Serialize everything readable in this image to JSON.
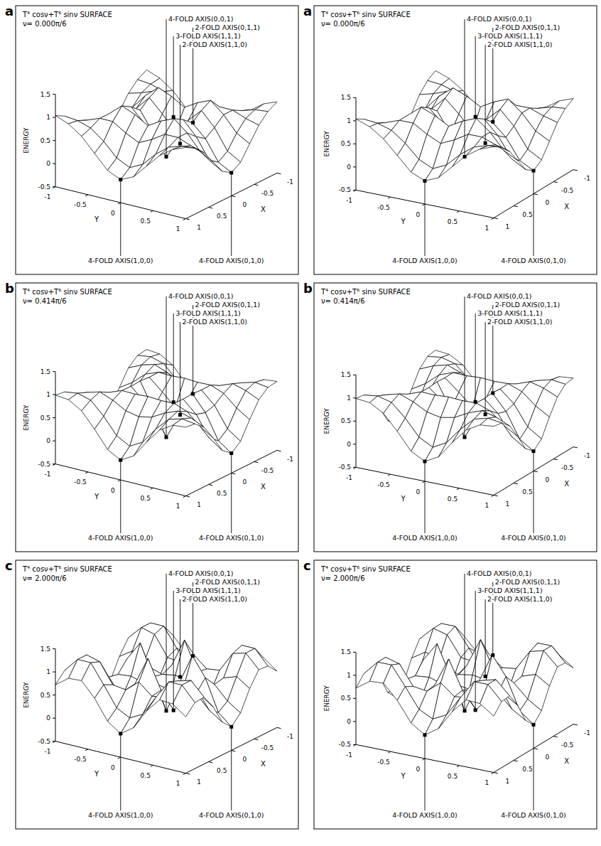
{
  "chart_data": [
    {
      "type": "surface",
      "panel_label": "a",
      "title": "T⁴ cosν+T⁶ sinν SURFACE",
      "subtitle": "ν= 0.000π/6",
      "x_label": "X",
      "y_label": "Y",
      "z_label": "ENERGY",
      "x": [
        -1,
        -0.8,
        -0.6,
        -0.4,
        -0.2,
        0,
        0.2,
        0.4,
        0.6,
        0.8,
        1
      ],
      "y": [
        -1,
        -0.8,
        -0.6,
        -0.4,
        -0.2,
        0,
        0.2,
        0.4,
        0.6,
        0.8,
        1
      ],
      "z": [
        [
          1.04,
          0.93,
          0.73,
          0.43,
          0.13,
          0,
          0.13,
          0.43,
          0.73,
          0.93,
          1.04
        ],
        [
          0.93,
          0.9,
          0.81,
          0.59,
          0.3,
          0.16,
          0.3,
          0.59,
          0.81,
          0.9,
          0.93
        ],
        [
          0.73,
          0.81,
          0.92,
          0.92,
          0.74,
          0.6,
          0.74,
          0.92,
          0.92,
          0.81,
          0.73
        ],
        [
          0.43,
          0.59,
          0.92,
          1.16,
          1.04,
          0.87,
          1.04,
          1.16,
          0.92,
          0.59,
          0.43
        ],
        [
          0.13,
          0.3,
          0.74,
          1.04,
          0.76,
          0.44,
          0.76,
          1.04,
          0.74,
          0.3,
          0.13
        ],
        [
          0,
          0.16,
          0.6,
          0.87,
          0.44,
          0,
          0.44,
          0.87,
          0.6,
          0.16,
          0
        ],
        [
          0.13,
          0.3,
          0.74,
          1.04,
          0.76,
          0.44,
          0.76,
          1.04,
          0.74,
          0.3,
          0.13
        ],
        [
          0.43,
          0.59,
          0.92,
          1.16,
          1.04,
          0.87,
          1.04,
          1.16,
          0.92,
          0.59,
          0.43
        ],
        [
          0.73,
          0.81,
          0.92,
          0.92,
          0.74,
          0.6,
          0.74,
          0.92,
          0.92,
          0.81,
          0.73
        ],
        [
          0.93,
          0.9,
          0.81,
          0.59,
          0.3,
          0.16,
          0.3,
          0.59,
          0.81,
          0.9,
          0.93
        ],
        [
          1.04,
          0.93,
          0.73,
          0.43,
          0.13,
          0,
          0.13,
          0.43,
          0.73,
          0.93,
          1.04
        ]
      ],
      "xlim": [
        -1,
        1
      ],
      "xticks": [
        -1,
        -0.5,
        0,
        0.5,
        1
      ],
      "ylim": [
        -1,
        1
      ],
      "yticks": [
        -1,
        -0.5,
        0,
        0.5,
        1
      ],
      "zlim": [
        -0.5,
        1.5
      ],
      "zticks": [
        -0.5,
        0,
        0.5,
        1,
        1.5
      ],
      "annotations": [
        {
          "text": "4-FOLD AXIS(0,0,1)",
          "x": 0,
          "y": 0,
          "z": 0
        },
        {
          "text": "2-FOLD AXIS(0,1,1)",
          "x": 0,
          "y": 0.41,
          "z": 0.88
        },
        {
          "text": "3-FOLD AXIS(1,1,1)",
          "x": 0.37,
          "y": 0.37,
          "z": 1.17
        },
        {
          "text": "2-FOLD AXIS(1,1,0)",
          "x": 0.71,
          "y": 0.71,
          "z": 0.88
        },
        {
          "text": "4-FOLD AXIS(1,0,0)",
          "x": 1,
          "y": 0,
          "z": 0
        },
        {
          "text": "4-FOLD AXIS(0,1,0)",
          "x": 0,
          "y": 1,
          "z": 0
        }
      ]
    },
    {
      "type": "surface",
      "panel_label": "b",
      "title": "T⁴ cosν+T⁶ sinν SURFACE",
      "subtitle": "ν= 0.414π/6",
      "x_label": "X",
      "y_label": "Y",
      "z_label": "ENERGY",
      "x": [
        -1,
        -0.8,
        -0.6,
        -0.4,
        -0.2,
        0,
        0.2,
        0.4,
        0.6,
        0.8,
        1
      ],
      "y": [
        -1,
        -0.8,
        -0.6,
        -0.4,
        -0.2,
        0,
        0.2,
        0.4,
        0.6,
        0.8,
        1
      ],
      "z": [
        [
          0.99,
          0.96,
          0.79,
          0.46,
          0.09,
          -0.07,
          0.09,
          0.46,
          0.79,
          0.96,
          0.99
        ],
        [
          0.96,
          1,
          0.92,
          0.64,
          0.29,
          0.13,
          0.29,
          0.64,
          0.92,
          1,
          0.96
        ],
        [
          0.79,
          0.92,
          1,
          0.89,
          0.73,
          0.67,
          0.73,
          0.89,
          1,
          0.92,
          0.79
        ],
        [
          0.46,
          0.64,
          0.89,
          1,
          0.99,
          1.01,
          0.99,
          1,
          0.89,
          0.64,
          0.46
        ],
        [
          0.09,
          0.29,
          0.73,
          0.99,
          0.74,
          0.47,
          0.74,
          0.99,
          0.73,
          0.29,
          0.09
        ],
        [
          -0.07,
          0.13,
          0.67,
          1.01,
          0.47,
          -0.07,
          0.47,
          1.01,
          0.67,
          0.13,
          -0.07
        ],
        [
          0.09,
          0.29,
          0.73,
          0.99,
          0.74,
          0.47,
          0.74,
          0.99,
          0.73,
          0.29,
          0.09
        ],
        [
          0.46,
          0.64,
          0.89,
          1,
          0.99,
          1.01,
          0.99,
          1,
          0.89,
          0.64,
          0.46
        ],
        [
          0.79,
          0.92,
          1,
          0.89,
          0.73,
          0.67,
          0.73,
          0.89,
          1,
          0.92,
          0.79
        ],
        [
          0.96,
          1,
          0.92,
          0.64,
          0.29,
          0.13,
          0.29,
          0.64,
          0.92,
          1,
          0.96
        ],
        [
          0.99,
          0.96,
          0.79,
          0.46,
          0.09,
          -0.07,
          0.09,
          0.46,
          0.79,
          0.96,
          0.99
        ]
      ],
      "xlim": [
        -1,
        1
      ],
      "xticks": [
        -1,
        -0.5,
        0,
        0.5,
        1
      ],
      "ylim": [
        -1,
        1
      ],
      "yticks": [
        -1,
        -0.5,
        0,
        0.5,
        1
      ],
      "zlim": [
        -0.5,
        1.5
      ],
      "zticks": [
        -0.5,
        0,
        0.5,
        1,
        1.5
      ],
      "annotations": [
        {
          "text": "4-FOLD AXIS(0,0,1)",
          "x": 0,
          "y": 0,
          "z": -0.07
        },
        {
          "text": "2-FOLD AXIS(0,1,1)",
          "x": 0,
          "y": 0.41,
          "z": 1.01
        },
        {
          "text": "3-FOLD AXIS(1,1,1)",
          "x": 0.37,
          "y": 0.37,
          "z": 1
        },
        {
          "text": "2-FOLD AXIS(1,1,0)",
          "x": 0.71,
          "y": 0.71,
          "z": 1.01
        },
        {
          "text": "4-FOLD AXIS(1,0,0)",
          "x": 1,
          "y": 0,
          "z": -0.07
        },
        {
          "text": "4-FOLD AXIS(0,1,0)",
          "x": 0,
          "y": 1,
          "z": -0.07
        }
      ]
    },
    {
      "type": "surface",
      "panel_label": "c",
      "title": "T⁴ cosν+T⁶ sinν SURFACE",
      "subtitle": "ν= 2.000π/6",
      "x_label": "X",
      "y_label": "Y",
      "z_label": "ENERGY",
      "x": [
        -1,
        -0.8,
        -0.6,
        -0.4,
        -0.2,
        0,
        0.2,
        0.4,
        0.6,
        0.8,
        1
      ],
      "y": [
        -1,
        -0.8,
        -0.6,
        -0.4,
        -0.2,
        0,
        0.2,
        0.4,
        0.6,
        0.8,
        1
      ],
      "z": [
        [
          0.72,
          0.93,
          0.95,
          0.64,
          0.21,
          0.01,
          0.21,
          0.64,
          0.95,
          0.93,
          0.72
        ],
        [
          0.93,
          1.24,
          1.24,
          0.83,
          0.4,
          0.25,
          0.4,
          0.83,
          1.24,
          1.24,
          0.93
        ],
        [
          0.95,
          1.24,
          1.16,
          0.73,
          0.69,
          0.93,
          0.69,
          0.73,
          1.16,
          1.24,
          0.95
        ],
        [
          0.64,
          0.83,
          0.73,
          0.36,
          0.72,
          1.34,
          0.72,
          0.36,
          0.73,
          0.83,
          0.64
        ],
        [
          0.21,
          0.4,
          0.69,
          0.72,
          0.63,
          0.68,
          0.63,
          0.72,
          0.69,
          0.4,
          0.21
        ],
        [
          0.01,
          0.25,
          0.93,
          1.34,
          0.68,
          0.01,
          0.68,
          1.34,
          0.93,
          0.25,
          0.01
        ],
        [
          0.21,
          0.4,
          0.69,
          0.72,
          0.63,
          0.68,
          0.63,
          0.72,
          0.69,
          0.4,
          0.21
        ],
        [
          0.64,
          0.83,
          0.73,
          0.36,
          0.72,
          1.34,
          0.72,
          0.36,
          0.73,
          0.83,
          0.64
        ],
        [
          0.95,
          1.24,
          1.16,
          0.73,
          0.69,
          0.93,
          0.69,
          0.73,
          1.16,
          1.24,
          0.95
        ],
        [
          0.93,
          1.24,
          1.24,
          0.83,
          0.4,
          0.25,
          0.4,
          0.83,
          1.24,
          1.24,
          0.93
        ],
        [
          0.72,
          0.93,
          0.95,
          0.64,
          0.21,
          0.01,
          0.21,
          0.64,
          0.95,
          0.93,
          0.72
        ]
      ],
      "xlim": [
        -1,
        1
      ],
      "xticks": [
        -1,
        -0.5,
        0,
        0.5,
        1
      ],
      "ylim": [
        -1,
        1
      ],
      "yticks": [
        -1,
        -0.5,
        0,
        0.5,
        1
      ],
      "zlim": [
        -0.5,
        1.5
      ],
      "zticks": [
        -0.5,
        0,
        0.5,
        1,
        1.5
      ],
      "annotations": [
        {
          "text": "4-FOLD AXIS(0,0,1)",
          "x": 0,
          "y": 0,
          "z": 0.01
        },
        {
          "text": "2-FOLD AXIS(0,1,1)",
          "x": 0,
          "y": 0.41,
          "z": 1.34
        },
        {
          "text": "3-FOLD AXIS(1,1,1)",
          "x": 0.37,
          "y": 0.37,
          "z": 0.33
        },
        {
          "text": "2-FOLD AXIS(1,1,0)",
          "x": 0.71,
          "y": 0.71,
          "z": 1.34
        },
        {
          "text": "4-FOLD AXIS(1,0,0)",
          "x": 1,
          "y": 0,
          "z": 0.01
        },
        {
          "text": "4-FOLD AXIS(0,1,0)",
          "x": 0,
          "y": 1,
          "z": 0.01
        }
      ]
    }
  ]
}
